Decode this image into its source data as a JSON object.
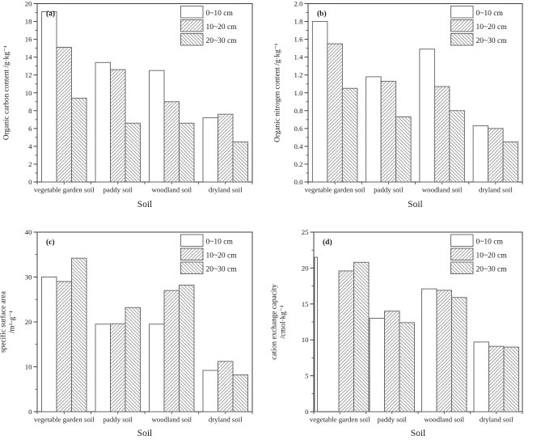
{
  "figure": {
    "xlabel": "Soil",
    "categories": [
      "vegetable garden soil",
      "paddy soil",
      "woodland soil",
      "dryland soil"
    ],
    "legend": [
      "0~10 cm",
      "10~20 cm",
      "20~30 cm"
    ],
    "colors": {
      "background": "#ffffff",
      "axis": "#3f3f3f",
      "bar_border": "#5f5f5f",
      "hatch_line": "#8c8c8c",
      "text": "#1c1c1c"
    }
  },
  "chart_data": [
    {
      "type": "bar",
      "panel_label": "(a)",
      "ylabel_lines": [
        "Organic carbon content /g·kg⁻¹"
      ],
      "xlabel": "Soil",
      "ylim": [
        0,
        20
      ],
      "ytick_step": 2,
      "yminor_step": 1,
      "yticks": [
        "0",
        "2",
        "4",
        "6",
        "8",
        "10",
        "12",
        "14",
        "16",
        "18",
        "20"
      ],
      "grid": false,
      "legend_position": "top-right",
      "categories": [
        "vegetable garden soil",
        "paddy soil",
        "woodland soil",
        "dryland soil"
      ],
      "series": [
        {
          "name": "0~10 cm",
          "hatch": "none",
          "values": [
            19.1,
            13.4,
            12.5,
            7.2
          ]
        },
        {
          "name": "10~20 cm",
          "hatch": "forward",
          "values": [
            15.1,
            12.6,
            9.0,
            7.6
          ]
        },
        {
          "name": "20~30 cm",
          "hatch": "backward",
          "values": [
            9.4,
            6.6,
            6.6,
            4.5
          ]
        }
      ]
    },
    {
      "type": "bar",
      "panel_label": "(b)",
      "ylabel_lines": [
        "Organic nitrogen content /g·kg⁻¹"
      ],
      "xlabel": "Soil",
      "ylim": [
        0,
        2.0
      ],
      "ytick_step": 0.2,
      "yminor_step": 0.1,
      "yticks": [
        "0.0",
        "0.2",
        "0.4",
        "0.6",
        "0.8",
        "1.0",
        "1.2",
        "1.4",
        "1.6",
        "1.8",
        "2.0"
      ],
      "grid": false,
      "legend_position": "top-right",
      "categories": [
        "vegetable garden soil",
        "paddy soil",
        "woodland soil",
        "dryland soil"
      ],
      "series": [
        {
          "name": "0~10 cm",
          "hatch": "none",
          "values": [
            1.8,
            1.18,
            1.49,
            0.63
          ]
        },
        {
          "name": "10~20 cm",
          "hatch": "forward",
          "values": [
            1.55,
            1.13,
            1.07,
            0.6
          ]
        },
        {
          "name": "20~30 cm",
          "hatch": "backward",
          "values": [
            1.05,
            0.73,
            0.8,
            0.45
          ]
        }
      ]
    },
    {
      "type": "bar",
      "panel_label": "(c)",
      "ylabel_lines": [
        "specific surface area",
        "/m²·g⁻¹"
      ],
      "xlabel": "Soil",
      "ylim": [
        0,
        40
      ],
      "ytick_step": 10,
      "yminor_step": 5,
      "yticks": [
        "0",
        "10",
        "20",
        "30",
        "40"
      ],
      "grid": false,
      "legend_position": "top-right",
      "categories": [
        "vegetable garden soil",
        "paddy soil",
        "woodland soil",
        "dryland soil"
      ],
      "series": [
        {
          "name": "0~10 cm",
          "hatch": "none",
          "values": [
            30.0,
            19.5,
            19.5,
            9.2
          ]
        },
        {
          "name": "10~20 cm",
          "hatch": "forward",
          "values": [
            29.0,
            19.6,
            27.0,
            11.2
          ]
        },
        {
          "name": "20~30 cm",
          "hatch": "backward",
          "values": [
            34.2,
            23.2,
            28.2,
            8.2
          ]
        }
      ]
    },
    {
      "type": "bar",
      "panel_label": "(d)",
      "ylabel_lines": [
        "cation exchange capacity",
        "/cmol·kg⁻¹"
      ],
      "xlabel": "Soil",
      "ylim": [
        0,
        25
      ],
      "ytick_step": 5,
      "yminor_step": 2.5,
      "yticks": [
        "0",
        "5",
        "10",
        "15",
        "20",
        "25"
      ],
      "grid": false,
      "legend_position": "top-right",
      "render_quirk": "first 0~10 cm bar clipped at y-axis",
      "categories": [
        "vegetable garden soil",
        "paddy soil",
        "woodland soil",
        "dryland soil"
      ],
      "series": [
        {
          "name": "0~10 cm",
          "hatch": "none",
          "values": [
            21.5,
            13.0,
            17.1,
            9.7
          ]
        },
        {
          "name": "10~20 cm",
          "hatch": "forward",
          "values": [
            19.6,
            14.0,
            16.9,
            9.1
          ]
        },
        {
          "name": "20~30 cm",
          "hatch": "backward",
          "values": [
            20.8,
            12.4,
            15.9,
            9.0
          ]
        }
      ]
    }
  ]
}
